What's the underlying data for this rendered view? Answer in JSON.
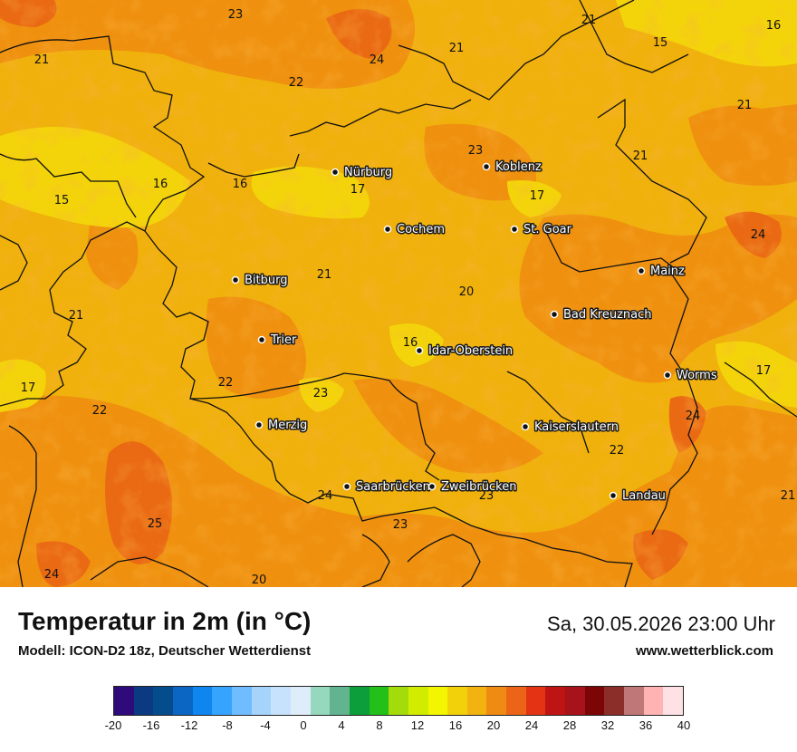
{
  "map": {
    "cities": [
      {
        "id": "nuerburg",
        "name": "Nürburg"
      },
      {
        "id": "koblenz",
        "name": "Koblenz"
      },
      {
        "id": "cochem",
        "name": "Cochem"
      },
      {
        "id": "st-goar",
        "name": "St. Goar"
      },
      {
        "id": "mainz",
        "name": "Mainz"
      },
      {
        "id": "bitburg",
        "name": "Bitburg"
      },
      {
        "id": "bad-kreuznach",
        "name": "Bad Kreuznach"
      },
      {
        "id": "trier",
        "name": "Trier"
      },
      {
        "id": "idar-oberstein",
        "name": "Idar-Oberstein"
      },
      {
        "id": "worms",
        "name": "Worms"
      },
      {
        "id": "merzig",
        "name": "Merzig"
      },
      {
        "id": "kaiserslautern",
        "name": "Kaiserslautern"
      },
      {
        "id": "saarbruecken",
        "name": "Saarbrücken"
      },
      {
        "id": "zweibruecken",
        "name": "Zweibrücken"
      },
      {
        "id": "landau",
        "name": "Landau"
      }
    ],
    "temperatures": [
      "23",
      "21",
      "16",
      "21",
      "15",
      "24",
      "21",
      "22",
      "21",
      "23",
      "21",
      "16",
      "16",
      "15",
      "17",
      "17",
      "24",
      "21",
      "20",
      "21",
      "16",
      "17",
      "22",
      "17",
      "23",
      "22",
      "24",
      "21",
      "24",
      "23",
      "23",
      "25",
      "24",
      "20",
      "22"
    ]
  },
  "footer": {
    "title": "Temperatur in 2m (in °C)",
    "subtitle": "Modell: ICON-D2 18z, Deutscher Wetterdienst",
    "datetime": "Sa, 30.05.2026 23:00 Uhr",
    "website": "www.wetterblick.com"
  },
  "legend": {
    "colors": [
      "#2e0a7a",
      "#0c3a80",
      "#054c8c",
      "#0a66c2",
      "#0f85f0",
      "#36a3ff",
      "#6fbcff",
      "#a6d3fb",
      "#c7e2fc",
      "#dfecfa",
      "#95d8bd",
      "#62b38f",
      "#0b9e3a",
      "#22c019",
      "#a3db0b",
      "#d2ec00",
      "#f3f600",
      "#f2d10a",
      "#f2b311",
      "#ef8a13",
      "#ec6417",
      "#e33314",
      "#bf1414",
      "#a8121a",
      "#7c0506",
      "#8b2e2a",
      "#c07777",
      "#ffb3b3",
      "#fde1e4"
    ],
    "tick_labels": [
      "-20",
      "-16",
      "-12",
      "-8",
      "-4",
      "0",
      "4",
      "8",
      "12",
      "16",
      "20",
      "24",
      "28",
      "32",
      "36",
      "40"
    ]
  }
}
